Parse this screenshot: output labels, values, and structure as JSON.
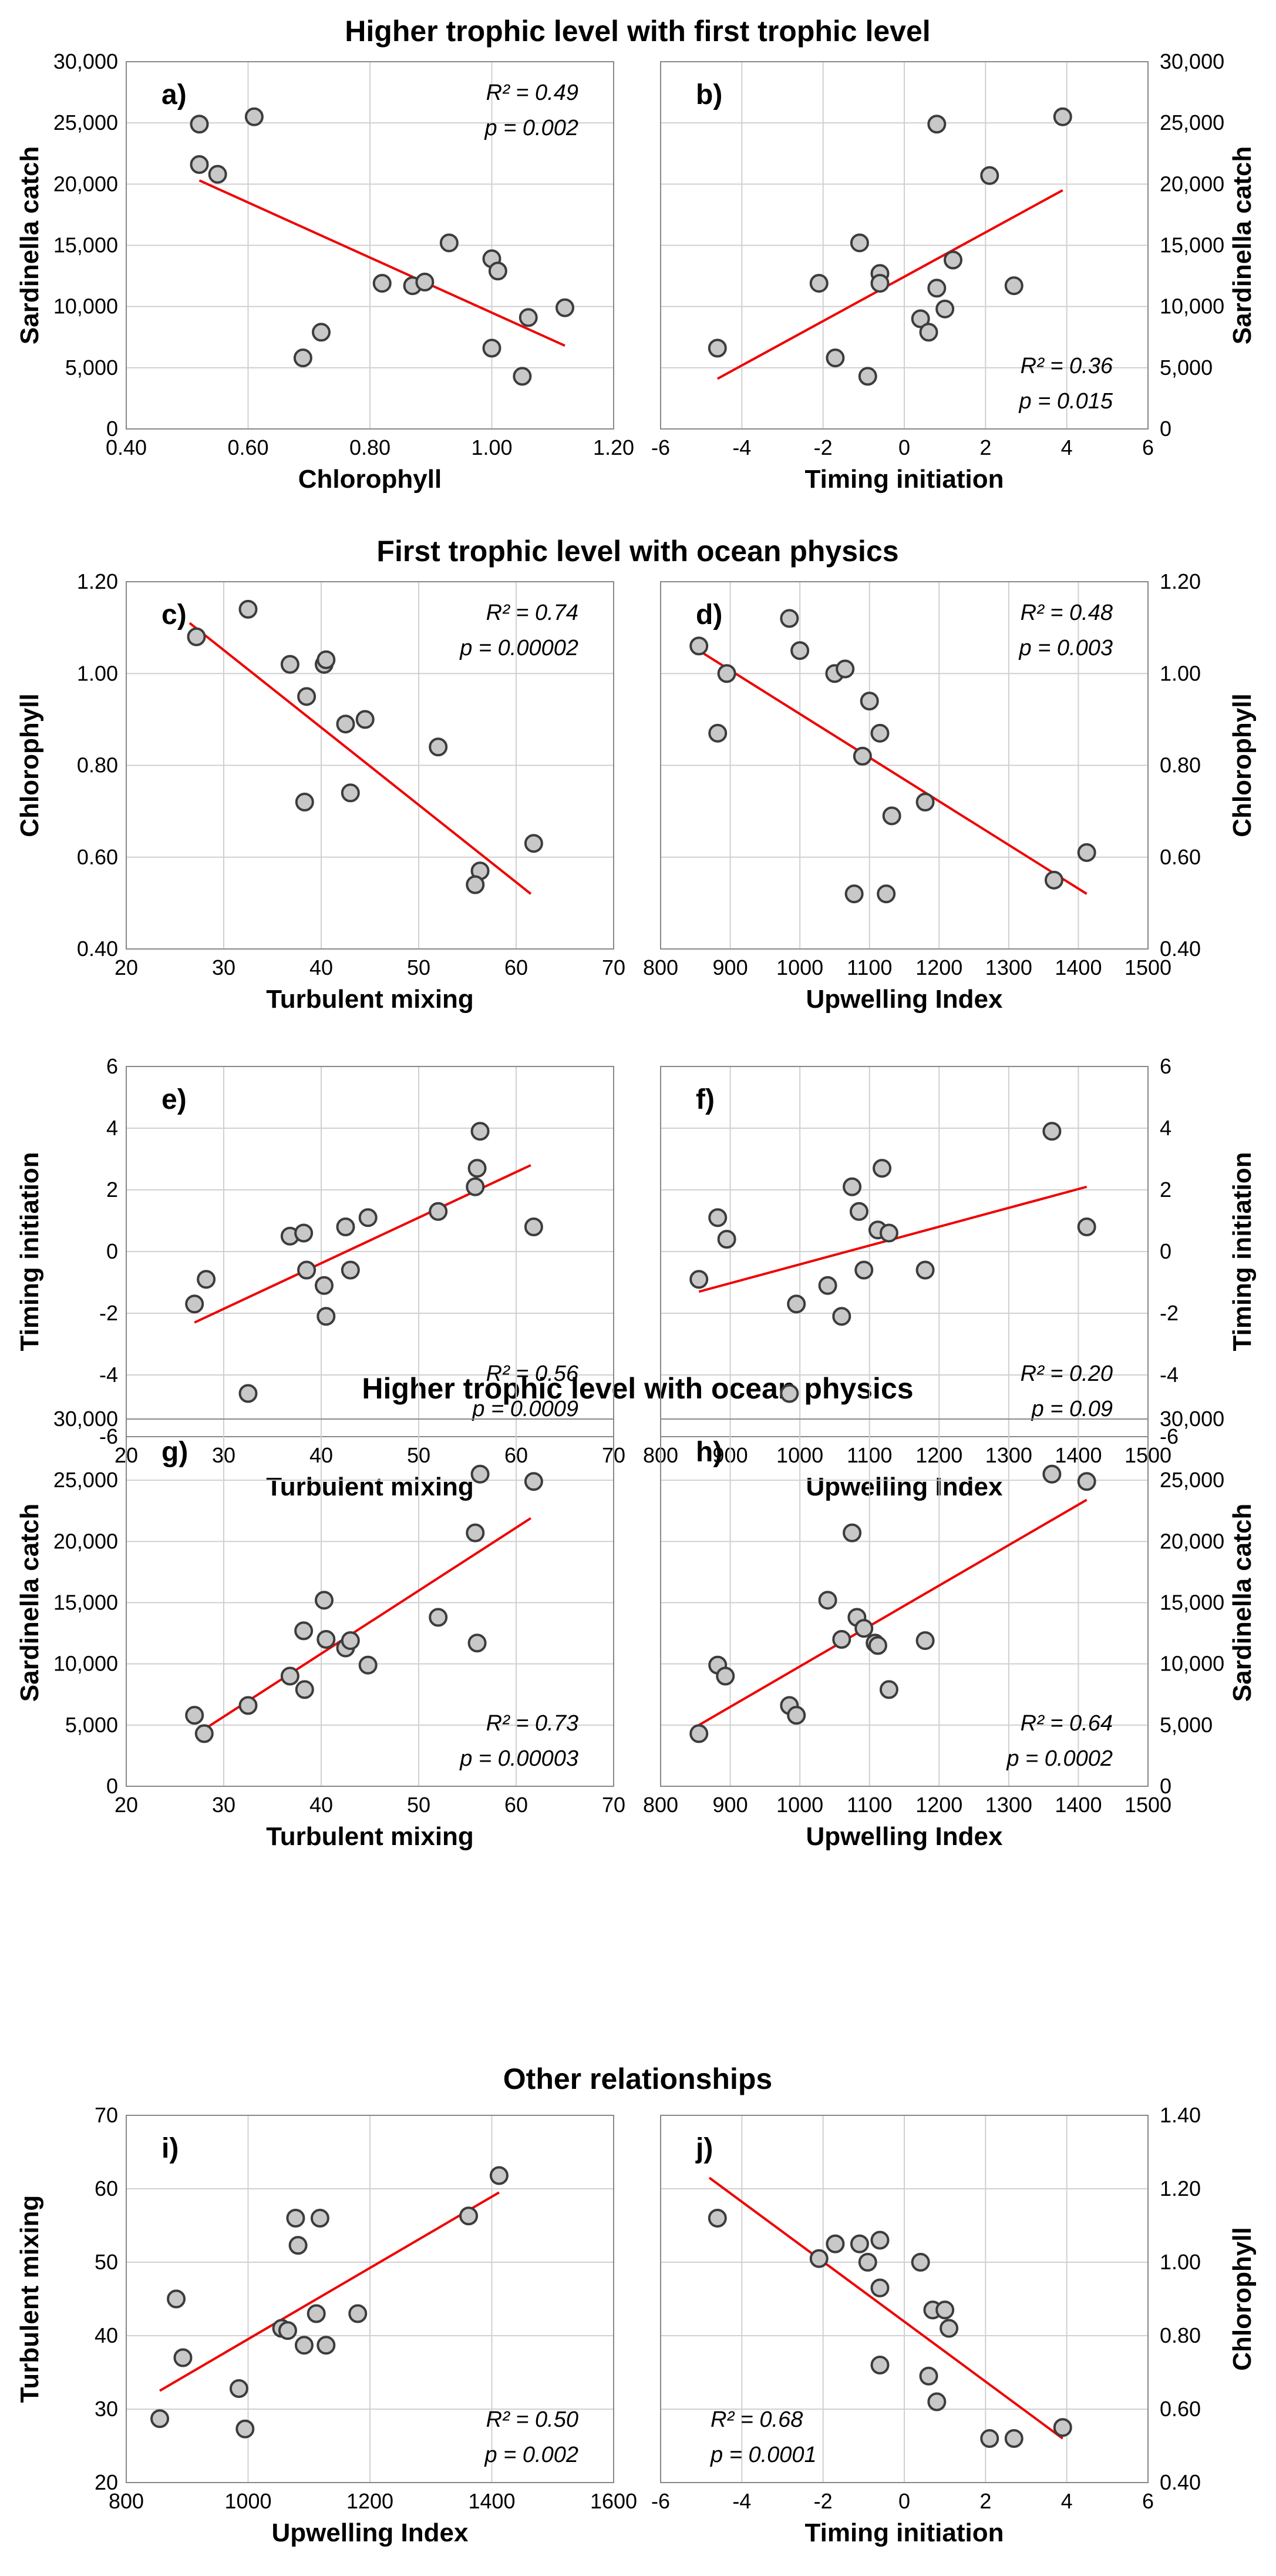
{
  "sections": [
    "Higher trophic level with first trophic level",
    "First trophic level with ocean physics",
    "Higher trophic level with ocean physics",
    "Other relationships"
  ],
  "colors": {
    "trend": "#ee0000",
    "point_fill": "#c8c8c8",
    "point_edge": "#3c3c3c",
    "grid": "#d0d0d0"
  },
  "chart_data": [
    {
      "id": "a",
      "label": "a)",
      "type": "scatter",
      "xlabel": "Chlorophyll",
      "ylabel": "Sardinella catch",
      "xlim": [
        0.4,
        1.2
      ],
      "ylim": [
        0,
        30000
      ],
      "xticks": [
        "0.40",
        "0.60",
        "0.80",
        "1.00",
        "1.20"
      ],
      "yticks": [
        "0",
        "5,000",
        "10,000",
        "15,000",
        "20,000",
        "25,000",
        "30,000"
      ],
      "points": [
        [
          0.52,
          24900
        ],
        [
          0.52,
          21600
        ],
        [
          0.55,
          20800
        ],
        [
          0.61,
          25500
        ],
        [
          0.69,
          5800
        ],
        [
          0.72,
          7900
        ],
        [
          0.82,
          11900
        ],
        [
          0.87,
          11700
        ],
        [
          0.89,
          12000
        ],
        [
          0.93,
          15200
        ],
        [
          1.0,
          13900
        ],
        [
          1.0,
          6600
        ],
        [
          1.01,
          12900
        ],
        [
          1.05,
          4300
        ],
        [
          1.06,
          9100
        ],
        [
          1.12,
          9900
        ]
      ],
      "trend": [
        [
          0.52,
          20300
        ],
        [
          1.12,
          6800
        ]
      ],
      "r2": "R² = 0.49",
      "p": "p = 0.002",
      "stat_pos": "top-right"
    },
    {
      "id": "b",
      "label": "b)",
      "type": "scatter",
      "xlabel": "Timing initiation",
      "ylabel": "Sardinella catch",
      "xlim": [
        -6,
        6
      ],
      "ylim": [
        0,
        30000
      ],
      "xticks": [
        "-6",
        "-4",
        "-2",
        "0",
        "2",
        "4",
        "6"
      ],
      "yticks": [
        "0",
        "5,000",
        "10,000",
        "15,000",
        "20,000",
        "25,000",
        "30,000"
      ],
      "points": [
        [
          -4.6,
          6600
        ],
        [
          -2.1,
          11900
        ],
        [
          -1.7,
          5800
        ],
        [
          -1.1,
          15200
        ],
        [
          -0.9,
          4300
        ],
        [
          -0.6,
          12700
        ],
        [
          -0.6,
          11900
        ],
        [
          0.4,
          9000
        ],
        [
          0.6,
          7900
        ],
        [
          0.8,
          11500
        ],
        [
          0.8,
          24900
        ],
        [
          1.0,
          9800
        ],
        [
          1.2,
          13800
        ],
        [
          2.1,
          20700
        ],
        [
          2.7,
          11700
        ],
        [
          3.9,
          25500
        ]
      ],
      "trend": [
        [
          -4.6,
          4100
        ],
        [
          3.9,
          19500
        ]
      ],
      "r2": "R² = 0.36",
      "p": "p = 0.015",
      "stat_pos": "bottom-right"
    },
    {
      "id": "c",
      "label": "c)",
      "type": "scatter",
      "xlabel": "Turbulent mixing",
      "ylabel": "Chlorophyll",
      "xlim": [
        20,
        70
      ],
      "ylim": [
        0.4,
        1.2
      ],
      "xticks": [
        "20",
        "30",
        "40",
        "50",
        "60",
        "70"
      ],
      "yticks": [
        "0.40",
        "0.60",
        "0.80",
        "1.00",
        "1.20"
      ],
      "points": [
        [
          27.2,
          1.08
        ],
        [
          32.5,
          1.14
        ],
        [
          36.8,
          1.02
        ],
        [
          38.5,
          0.95
        ],
        [
          40.3,
          1.02
        ],
        [
          40.5,
          1.03
        ],
        [
          38.3,
          0.72
        ],
        [
          42.5,
          0.89
        ],
        [
          44.5,
          0.9
        ],
        [
          43.0,
          0.74
        ],
        [
          52.0,
          0.84
        ],
        [
          56.3,
          0.57
        ],
        [
          55.8,
          0.54
        ],
        [
          61.8,
          0.63
        ]
      ],
      "trend": [
        [
          26.5,
          1.11
        ],
        [
          61.5,
          0.52
        ]
      ],
      "r2": "R² = 0.74",
      "p": "p = 0.00002",
      "stat_pos": "top-right"
    },
    {
      "id": "d",
      "label": "d)",
      "type": "scatter",
      "xlabel": "Upwelling Index",
      "ylabel": "Chlorophyll",
      "xlim": [
        800,
        1500
      ],
      "ylim": [
        0.4,
        1.2
      ],
      "xticks": [
        "800",
        "900",
        "1000",
        "1100",
        "1200",
        "1300",
        "1400",
        "1500"
      ],
      "yticks": [
        "0.40",
        "0.60",
        "0.80",
        "1.00",
        "1.20"
      ],
      "points": [
        [
          855,
          1.06
        ],
        [
          882,
          0.87
        ],
        [
          895,
          1.0
        ],
        [
          985,
          1.12
        ],
        [
          1000,
          1.05
        ],
        [
          1050,
          1.0
        ],
        [
          1065,
          1.01
        ],
        [
          1078,
          0.52
        ],
        [
          1090,
          0.82
        ],
        [
          1100,
          0.94
        ],
        [
          1115,
          0.87
        ],
        [
          1124,
          0.52
        ],
        [
          1132,
          0.69
        ],
        [
          1180,
          0.72
        ],
        [
          1365,
          0.55
        ],
        [
          1412,
          0.61
        ]
      ],
      "trend": [
        [
          855,
          1.05
        ],
        [
          1412,
          0.52
        ]
      ],
      "r2": "R² = 0.48",
      "p": "p = 0.003",
      "stat_pos": "top-right"
    },
    {
      "id": "e",
      "label": "e)",
      "type": "scatter",
      "xlabel": "Turbulent mixing",
      "ylabel": "Timing initiation",
      "xlim": [
        20,
        70
      ],
      "ylim": [
        -6,
        6
      ],
      "xticks": [
        "20",
        "30",
        "40",
        "50",
        "60",
        "70"
      ],
      "yticks": [
        "-6",
        "-4",
        "-2",
        "0",
        "2",
        "4",
        "6"
      ],
      "points": [
        [
          27.0,
          -1.7
        ],
        [
          28.2,
          -0.9
        ],
        [
          32.5,
          -4.6
        ],
        [
          36.8,
          0.5
        ],
        [
          38.2,
          0.6
        ],
        [
          38.5,
          -0.6
        ],
        [
          40.3,
          -1.1
        ],
        [
          40.5,
          -2.1
        ],
        [
          42.5,
          0.8
        ],
        [
          43.0,
          -0.6
        ],
        [
          44.8,
          1.1
        ],
        [
          52.0,
          1.3
        ],
        [
          55.8,
          2.1
        ],
        [
          56.0,
          2.7
        ],
        [
          56.3,
          3.9
        ],
        [
          61.8,
          0.8
        ]
      ],
      "trend": [
        [
          27.0,
          -2.3
        ],
        [
          61.5,
          2.8
        ]
      ],
      "r2": "R² = 0.56",
      "p": "p = 0.0009",
      "stat_pos": "bottom-right"
    },
    {
      "id": "f",
      "label": "f)",
      "type": "scatter",
      "xlabel": "Upwelling Index",
      "ylabel": "Timing initiation",
      "xlim": [
        800,
        1500
      ],
      "ylim": [
        -6,
        6
      ],
      "xticks": [
        "800",
        "900",
        "1000",
        "1100",
        "1200",
        "1300",
        "1400",
        "1500"
      ],
      "yticks": [
        "-6",
        "-4",
        "-2",
        "0",
        "2",
        "4",
        "6"
      ],
      "points": [
        [
          855,
          -0.9
        ],
        [
          882,
          1.1
        ],
        [
          895,
          0.4
        ],
        [
          985,
          -4.6
        ],
        [
          995,
          -1.7
        ],
        [
          1040,
          -1.1
        ],
        [
          1060,
          -2.1
        ],
        [
          1075,
          2.1
        ],
        [
          1085,
          1.3
        ],
        [
          1092,
          -0.6
        ],
        [
          1112,
          0.7
        ],
        [
          1118,
          2.7
        ],
        [
          1128,
          0.6
        ],
        [
          1180,
          -0.6
        ],
        [
          1362,
          3.9
        ],
        [
          1412,
          0.8
        ]
      ],
      "trend": [
        [
          855,
          -1.3
        ],
        [
          1412,
          2.1
        ]
      ],
      "r2": "R² = 0.20",
      "p": "p = 0.09",
      "stat_pos": "bottom-right"
    },
    {
      "id": "g",
      "label": "g)",
      "type": "scatter",
      "xlabel": "Turbulent mixing",
      "ylabel": "Sardinella catch",
      "xlim": [
        20,
        70
      ],
      "ylim": [
        0,
        30000
      ],
      "xticks": [
        "20",
        "30",
        "40",
        "50",
        "60",
        "70"
      ],
      "yticks": [
        "0",
        "5,000",
        "10,000",
        "15,000",
        "20,000",
        "25,000",
        "30,000"
      ],
      "points": [
        [
          27.0,
          5800
        ],
        [
          28.0,
          4300
        ],
        [
          32.5,
          6600
        ],
        [
          36.8,
          9000
        ],
        [
          38.2,
          12700
        ],
        [
          38.3,
          7900
        ],
        [
          40.3,
          15200
        ],
        [
          40.5,
          12000
        ],
        [
          42.5,
          11300
        ],
        [
          43.0,
          11900
        ],
        [
          44.8,
          9900
        ],
        [
          52.0,
          13800
        ],
        [
          55.8,
          20700
        ],
        [
          56.0,
          11700
        ],
        [
          56.3,
          25500
        ],
        [
          61.8,
          24900
        ]
      ],
      "trend": [
        [
          27.5,
          4400
        ],
        [
          61.5,
          21900
        ]
      ],
      "r2": "R² = 0.73",
      "p": "p = 0.00003",
      "stat_pos": "bottom-right"
    },
    {
      "id": "h",
      "label": "h)",
      "type": "scatter",
      "xlabel": "Upwelling Index",
      "ylabel": "Sardinella catch",
      "xlim": [
        800,
        1500
      ],
      "ylim": [
        0,
        30000
      ],
      "xticks": [
        "800",
        "900",
        "1000",
        "1100",
        "1200",
        "1300",
        "1400",
        "1500"
      ],
      "yticks": [
        "0",
        "5,000",
        "10,000",
        "15,000",
        "20,000",
        "25,000",
        "30,000"
      ],
      "points": [
        [
          855,
          4300
        ],
        [
          882,
          9900
        ],
        [
          893,
          9000
        ],
        [
          985,
          6600
        ],
        [
          995,
          5800
        ],
        [
          1040,
          15200
        ],
        [
          1060,
          12000
        ],
        [
          1075,
          20700
        ],
        [
          1082,
          13800
        ],
        [
          1092,
          12900
        ],
        [
          1108,
          11700
        ],
        [
          1112,
          11500
        ],
        [
          1128,
          7900
        ],
        [
          1180,
          11900
        ],
        [
          1362,
          25500
        ],
        [
          1412,
          24900
        ]
      ],
      "trend": [
        [
          855,
          5000
        ],
        [
          1412,
          23400
        ]
      ],
      "r2": "R² = 0.64",
      "p": "p = 0.0002",
      "stat_pos": "bottom-right"
    },
    {
      "id": "i",
      "label": "i)",
      "type": "scatter",
      "xlabel": "Upwelling Index",
      "ylabel": "Turbulent mixing",
      "xlim": [
        800,
        1600
      ],
      "ylim": [
        20,
        70
      ],
      "xticks": [
        "800",
        "1000",
        "1200",
        "1400",
        "1600"
      ],
      "yticks": [
        "20",
        "30",
        "40",
        "50",
        "60",
        "70"
      ],
      "points": [
        [
          855,
          28.7
        ],
        [
          882,
          45.0
        ],
        [
          893,
          37.0
        ],
        [
          985,
          32.8
        ],
        [
          995,
          27.3
        ],
        [
          1055,
          41.0
        ],
        [
          1065,
          40.7
        ],
        [
          1078,
          56.0
        ],
        [
          1082,
          52.3
        ],
        [
          1092,
          38.7
        ],
        [
          1112,
          43.0
        ],
        [
          1118,
          56.0
        ],
        [
          1128,
          38.7
        ],
        [
          1180,
          43.0
        ],
        [
          1362,
          56.3
        ],
        [
          1412,
          61.8
        ]
      ],
      "trend": [
        [
          855,
          32.5
        ],
        [
          1412,
          59.5
        ]
      ],
      "r2": "R² = 0.50",
      "p": "p = 0.002",
      "stat_pos": "bottom-right"
    },
    {
      "id": "j",
      "label": "j)",
      "type": "scatter",
      "xlabel": "Timing initiation",
      "ylabel": "Chlorophyll",
      "xlim": [
        -6,
        6
      ],
      "ylim": [
        0.4,
        1.4
      ],
      "xticks": [
        "-6",
        "-4",
        "-2",
        "0",
        "2",
        "4",
        "6"
      ],
      "yticks": [
        "0.40",
        "0.60",
        "0.80",
        "1.00",
        "1.20",
        "1.40"
      ],
      "points": [
        [
          -4.6,
          1.12
        ],
        [
          -2.1,
          1.01
        ],
        [
          -1.7,
          1.05
        ],
        [
          -1.1,
          1.05
        ],
        [
          -0.9,
          1.0
        ],
        [
          -0.6,
          1.06
        ],
        [
          -0.6,
          0.93
        ],
        [
          -0.6,
          0.72
        ],
        [
          0.4,
          1.0
        ],
        [
          0.6,
          0.69
        ],
        [
          0.7,
          0.87
        ],
        [
          0.8,
          0.62
        ],
        [
          1.0,
          0.87
        ],
        [
          1.1,
          0.82
        ],
        [
          2.1,
          0.52
        ],
        [
          2.7,
          0.52
        ],
        [
          3.9,
          0.55
        ]
      ],
      "trend": [
        [
          -4.8,
          1.23
        ],
        [
          3.9,
          0.52
        ]
      ],
      "r2": "R² = 0.68",
      "p": "p = 0.0001",
      "stat_pos": "bottom-left"
    }
  ]
}
